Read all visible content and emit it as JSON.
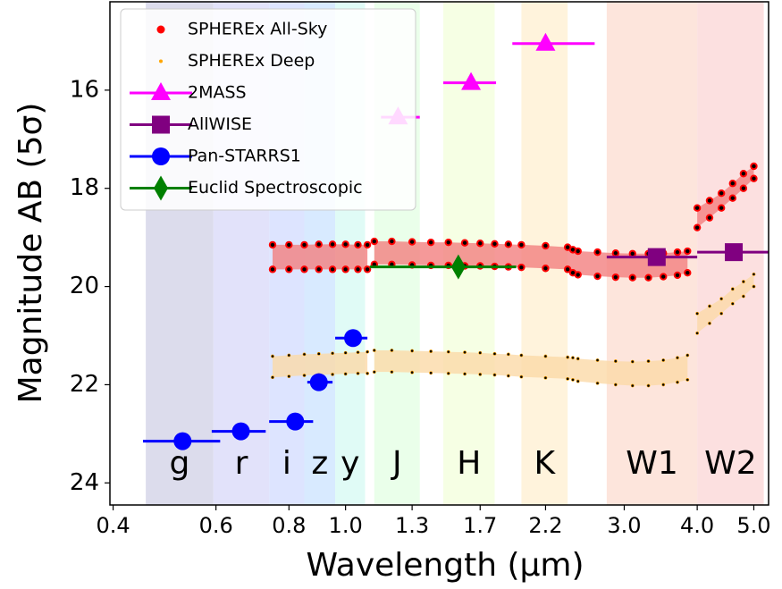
{
  "chart_data": {
    "type": "scatter",
    "xlabel": "Wavelength (μm)",
    "ylabel": "Magnitude AB  (5σ)",
    "xscale": "log",
    "yinvert": true,
    "xlim": [
      0.395,
      5.3
    ],
    "ylim": [
      14.2,
      24.45
    ],
    "xticks": [
      0.4,
      0.6,
      0.8,
      {
        "value": 1.0,
        "label": "1.0"
      },
      1.3,
      1.7,
      2.2,
      {
        "value": 3.0,
        "label": "3.0"
      },
      {
        "value": 4.0,
        "label": "4.0"
      },
      {
        "value": 5.0,
        "label": "5.0"
      }
    ],
    "yticks": [
      16,
      18,
      20,
      22,
      24
    ],
    "legend": "upper left",
    "bands": [
      {
        "label": "g",
        "range": [
          0.455,
          0.594
        ],
        "color": "#dcdcec"
      },
      {
        "label": "r",
        "range": [
          0.594,
          0.74
        ],
        "color": "#e2e2fa"
      },
      {
        "label": "i",
        "range": [
          0.74,
          0.85
        ],
        "color": "#dde4ff"
      },
      {
        "label": "z",
        "range": [
          0.85,
          0.96
        ],
        "color": "#d8eaff"
      },
      {
        "label": "y",
        "range": [
          0.96,
          1.08
        ],
        "color": "#e0fbf6"
      },
      {
        "label": "J",
        "range": [
          1.12,
          1.34
        ],
        "color": "#eaffea"
      },
      {
        "label": "H",
        "range": [
          1.47,
          1.8
        ],
        "color": "#f6ffe4"
      },
      {
        "label": "K",
        "range": [
          2.0,
          2.4
        ],
        "color": "#fff3dc"
      },
      {
        "label": "W1",
        "range": [
          2.8,
          4.0
        ],
        "color": "#fde5dc"
      },
      {
        "label": "W2",
        "range": [
          4.0,
          5.2
        ],
        "color": "#fce0e0"
      }
    ],
    "x": [
      0.75,
      0.8,
      0.85,
      0.9,
      0.95,
      1.0,
      1.05,
      1.09,
      1.1,
      1.12,
      1.2,
      1.3,
      1.4,
      1.5,
      1.6,
      1.7,
      1.8,
      1.9,
      2.0,
      2.2,
      2.4,
      2.45,
      2.5,
      2.7,
      2.9,
      3.1,
      3.3,
      3.5,
      3.7,
      3.85,
      3.95,
      4.0,
      4.2,
      4.4,
      4.6,
      4.8,
      5.0
    ],
    "surveys": [
      {
        "name": "SPHEREx All-Sky",
        "color": "red",
        "fill": "#f28080",
        "values": [
          19.15,
          19.15,
          19.15,
          19.14,
          19.14,
          19.14,
          19.15,
          19.15,
          null,
          19.08,
          19.08,
          19.09,
          19.1,
          19.1,
          19.11,
          19.12,
          19.13,
          19.14,
          19.15,
          19.17,
          19.2,
          19.25,
          19.28,
          19.3,
          19.32,
          19.33,
          19.33,
          19.32,
          19.3,
          19.28,
          null,
          18.4,
          18.25,
          18.1,
          17.9,
          17.7,
          17.55
        ],
        "values_low": [
          19.65,
          19.65,
          19.65,
          19.65,
          19.65,
          19.65,
          19.65,
          19.65,
          null,
          19.55,
          19.55,
          19.56,
          19.57,
          19.57,
          19.58,
          19.58,
          19.59,
          19.6,
          19.61,
          19.63,
          19.65,
          19.72,
          19.76,
          19.79,
          19.81,
          19.82,
          19.82,
          19.8,
          19.77,
          19.72,
          null,
          18.8,
          18.6,
          18.4,
          18.2,
          18.0,
          17.8
        ]
      },
      {
        "name": "SPHEREx Deep",
        "color": "orange",
        "fill": "#fbd9a8",
        "values": [
          21.42,
          21.4,
          21.38,
          21.37,
          21.36,
          21.35,
          21.34,
          21.33,
          null,
          21.3,
          21.3,
          21.31,
          21.32,
          21.33,
          21.34,
          21.35,
          21.37,
          21.38,
          21.4,
          21.42,
          21.44,
          21.45,
          21.47,
          21.5,
          21.52,
          21.53,
          21.52,
          21.5,
          21.45,
          21.4,
          null,
          20.55,
          20.4,
          20.25,
          20.05,
          19.9,
          19.75
        ],
        "values_low": [
          21.85,
          21.83,
          21.81,
          21.8,
          21.79,
          21.78,
          21.77,
          21.77,
          null,
          21.74,
          21.74,
          21.75,
          21.76,
          21.77,
          21.78,
          21.79,
          21.8,
          21.82,
          21.84,
          21.86,
          21.88,
          21.9,
          21.93,
          21.97,
          22.0,
          22.02,
          22.02,
          22.0,
          21.95,
          21.9,
          null,
          20.95,
          20.75,
          20.55,
          20.35,
          20.2,
          20.0
        ]
      }
    ],
    "series": [
      {
        "name": "2MASS",
        "color": "#ff00ff",
        "marker": "triangle",
        "x": [
          1.23,
          1.64,
          2.2
        ],
        "x_low": [
          1.15,
          1.47,
          1.93
        ],
        "x_high": [
          1.34,
          1.81,
          2.67
        ],
        "values": [
          16.55,
          15.85,
          15.05
        ]
      },
      {
        "name": "AllWISE",
        "color": "#800080",
        "marker": "square",
        "x": [
          3.41,
          4.62
        ],
        "x_low": [
          2.8,
          4.0
        ],
        "x_high": [
          4.0,
          5.3
        ],
        "values": [
          19.4,
          19.3
        ]
      },
      {
        "name": "Pan-STARRS1",
        "color": "#0000ff",
        "marker": "circle",
        "x": [
          0.526,
          0.662,
          0.82,
          0.9,
          1.03
        ],
        "x_low": [
          0.45,
          0.59,
          0.74,
          0.86,
          0.96
        ],
        "x_high": [
          0.61,
          0.73,
          0.88,
          0.95,
          1.09
        ],
        "values": [
          23.15,
          22.95,
          22.75,
          21.95,
          21.05
        ]
      },
      {
        "name": "Euclid Spectroscopic",
        "color": "#008000",
        "marker": "diamond",
        "x": [
          1.56
        ],
        "x_low": [
          1.1
        ],
        "x_high": [
          1.96
        ],
        "values": [
          19.6
        ]
      }
    ]
  }
}
